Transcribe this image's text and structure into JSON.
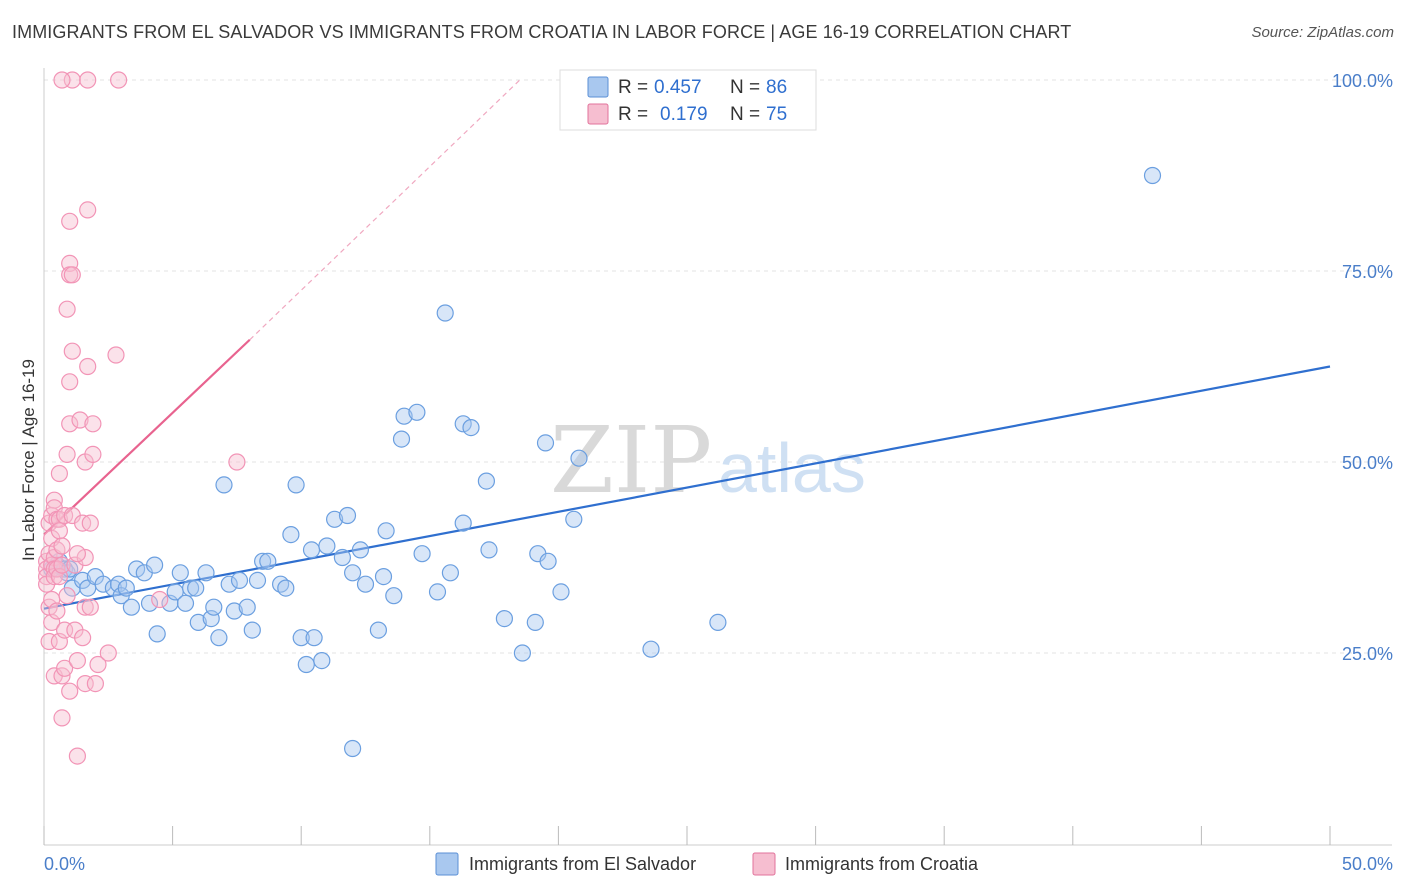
{
  "header": {
    "title": "IMMIGRANTS FROM EL SALVADOR VS IMMIGRANTS FROM CROATIA IN LABOR FORCE | AGE 16-19 CORRELATION CHART",
    "source": "Source: ZipAtlas.com"
  },
  "watermark": {
    "zip": "ZIP",
    "atlas": "atlas"
  },
  "legend": {
    "r_label": "R =",
    "n_label": "N =",
    "items": [
      {
        "r": "0.457",
        "n": "86",
        "color": "#a9c8ef",
        "stroke": "#5b8fd6"
      },
      {
        "r": "0.179",
        "n": "75",
        "color": "#f6bed0",
        "stroke": "#e2739b"
      }
    ]
  },
  "bottom_legend": [
    {
      "label": "Immigrants from El Salvador",
      "color": "#a9c8ef",
      "stroke": "#5b8fd6"
    },
    {
      "label": "Immigrants from Croatia",
      "color": "#f6bed0",
      "stroke": "#e2739b"
    }
  ],
  "chart_data": {
    "type": "scatter",
    "title": "IMMIGRANTS FROM EL SALVADOR VS IMMIGRANTS FROM CROATIA IN LABOR FORCE | AGE 16-19 CORRELATION CHART",
    "xlabel": "",
    "ylabel": "In Labor Force | Age 16-19",
    "xlim": [
      0,
      50
    ],
    "ylim": [
      0,
      105
    ],
    "x_tick_labels": [
      "0.0%",
      "50.0%"
    ],
    "y_ticks": [
      25,
      50,
      75,
      100
    ],
    "y_tick_labels": [
      "25.0%",
      "50.0%",
      "75.0%",
      "100.0%"
    ],
    "grid": true,
    "legend_position": "top-center",
    "series": [
      {
        "name": "Immigrants from El Salvador",
        "color": "#6b9fe0",
        "trend": {
          "x": [
            0,
            50
          ],
          "y": [
            30.8,
            62.5
          ],
          "style": "solid"
        },
        "points": [
          [
            0.3,
            36
          ],
          [
            0.5,
            36.5
          ],
          [
            0.6,
            37
          ],
          [
            0.8,
            36
          ],
          [
            0.9,
            35.5
          ],
          [
            1.0,
            36
          ],
          [
            1.1,
            33.5
          ],
          [
            1.5,
            34.5
          ],
          [
            1.7,
            33.5
          ],
          [
            2.0,
            35
          ],
          [
            2.3,
            34
          ],
          [
            2.7,
            33.5
          ],
          [
            2.9,
            34
          ],
          [
            3.0,
            32.5
          ],
          [
            3.2,
            33.5
          ],
          [
            3.4,
            31
          ],
          [
            3.6,
            36
          ],
          [
            3.9,
            35.5
          ],
          [
            4.1,
            31.5
          ],
          [
            4.3,
            36.5
          ],
          [
            4.4,
            27.5
          ],
          [
            4.9,
            31.5
          ],
          [
            5.1,
            33
          ],
          [
            5.3,
            35.5
          ],
          [
            5.5,
            31.5
          ],
          [
            5.7,
            33.5
          ],
          [
            6.0,
            29
          ],
          [
            6.3,
            35.5
          ],
          [
            6.5,
            29.5
          ],
          [
            6.6,
            31
          ],
          [
            6.8,
            27
          ],
          [
            7.0,
            47
          ],
          [
            7.2,
            34
          ],
          [
            7.4,
            30.5
          ],
          [
            7.6,
            34.5
          ],
          [
            7.9,
            31
          ],
          [
            8.1,
            28
          ],
          [
            8.3,
            34.5
          ],
          [
            8.5,
            37
          ],
          [
            8.7,
            37
          ],
          [
            9.2,
            34
          ],
          [
            9.4,
            33.5
          ],
          [
            9.6,
            40.5
          ],
          [
            9.8,
            47
          ],
          [
            10.0,
            27
          ],
          [
            10.2,
            23.5
          ],
          [
            10.4,
            38.5
          ],
          [
            10.5,
            27
          ],
          [
            10.8,
            24
          ],
          [
            11.0,
            39
          ],
          [
            11.3,
            42.5
          ],
          [
            11.6,
            37.5
          ],
          [
            11.8,
            43
          ],
          [
            12.0,
            12.5
          ],
          [
            12.0,
            35.5
          ],
          [
            12.3,
            38.5
          ],
          [
            12.5,
            34
          ],
          [
            13.0,
            28
          ],
          [
            13.2,
            35
          ],
          [
            13.3,
            41
          ],
          [
            13.6,
            32.5
          ],
          [
            13.9,
            53
          ],
          [
            14.0,
            56
          ],
          [
            14.5,
            56.5
          ],
          [
            14.7,
            38
          ],
          [
            15.3,
            33
          ],
          [
            15.6,
            69.5
          ],
          [
            15.8,
            35.5
          ],
          [
            16.3,
            42
          ],
          [
            16.3,
            55
          ],
          [
            16.6,
            54.5
          ],
          [
            17.2,
            47.5
          ],
          [
            17.3,
            38.5
          ],
          [
            17.9,
            29.5
          ],
          [
            18.6,
            25
          ],
          [
            19.1,
            29
          ],
          [
            19.2,
            38
          ],
          [
            19.6,
            37
          ],
          [
            19.5,
            52.5
          ],
          [
            20.1,
            33
          ],
          [
            20.6,
            42.5
          ],
          [
            20.8,
            50.5
          ],
          [
            23.6,
            25.5
          ],
          [
            26.2,
            29
          ],
          [
            43.1,
            87.5
          ],
          [
            5.9,
            33.5
          ]
        ]
      },
      {
        "name": "Immigrants from Croatia",
        "color": "#f294b6",
        "trend": {
          "x": [
            0,
            8
          ],
          "y": [
            40.5,
            66
          ],
          "style": "solid",
          "extension": {
            "x": [
              8,
              18.5
            ],
            "y": [
              66,
              100
            ],
            "style": "dashed"
          }
        },
        "points": [
          [
            0.1,
            37
          ],
          [
            0.1,
            36
          ],
          [
            0.1,
            35
          ],
          [
            0.1,
            34
          ],
          [
            0.2,
            38
          ],
          [
            0.2,
            42
          ],
          [
            0.2,
            31
          ],
          [
            0.2,
            26.5
          ],
          [
            0.3,
            43
          ],
          [
            0.3,
            40
          ],
          [
            0.3,
            36.5
          ],
          [
            0.3,
            32
          ],
          [
            0.3,
            29
          ],
          [
            0.4,
            45
          ],
          [
            0.4,
            44
          ],
          [
            0.4,
            37.5
          ],
          [
            0.4,
            36
          ],
          [
            0.4,
            35
          ],
          [
            0.4,
            22
          ],
          [
            0.5,
            42.5
          ],
          [
            0.5,
            38.5
          ],
          [
            0.5,
            36
          ],
          [
            0.5,
            30.5
          ],
          [
            0.6,
            48.5
          ],
          [
            0.6,
            42.5
          ],
          [
            0.6,
            41
          ],
          [
            0.6,
            35
          ],
          [
            0.6,
            26.5
          ],
          [
            0.7,
            39
          ],
          [
            0.7,
            36.5
          ],
          [
            0.7,
            22
          ],
          [
            0.7,
            16.5
          ],
          [
            0.8,
            43
          ],
          [
            0.8,
            28
          ],
          [
            0.8,
            23
          ],
          [
            0.9,
            70
          ],
          [
            0.9,
            51
          ],
          [
            0.9,
            32.5
          ],
          [
            1.0,
            81.5
          ],
          [
            1.0,
            76
          ],
          [
            1.0,
            74.5
          ],
          [
            1.0,
            60.5
          ],
          [
            1.0,
            55
          ],
          [
            1.0,
            20
          ],
          [
            1.1,
            100
          ],
          [
            1.1,
            74.5
          ],
          [
            1.1,
            64.5
          ],
          [
            1.1,
            43
          ],
          [
            1.2,
            36.5
          ],
          [
            1.2,
            28
          ],
          [
            1.3,
            11.5
          ],
          [
            1.3,
            24
          ],
          [
            1.4,
            55.5
          ],
          [
            1.5,
            42
          ],
          [
            1.6,
            50
          ],
          [
            1.6,
            37.5
          ],
          [
            1.6,
            21
          ],
          [
            1.6,
            31
          ],
          [
            1.7,
            83
          ],
          [
            1.7,
            62.5
          ],
          [
            1.7,
            100
          ],
          [
            1.8,
            42
          ],
          [
            1.8,
            31
          ],
          [
            1.9,
            55
          ],
          [
            1.9,
            51
          ],
          [
            2.0,
            21
          ],
          [
            2.1,
            23.5
          ],
          [
            2.5,
            25
          ],
          [
            2.8,
            64
          ],
          [
            2.9,
            100
          ],
          [
            4.5,
            32
          ],
          [
            7.5,
            50
          ],
          [
            1.3,
            38
          ],
          [
            0.7,
            100
          ],
          [
            1.5,
            27
          ]
        ]
      }
    ]
  }
}
